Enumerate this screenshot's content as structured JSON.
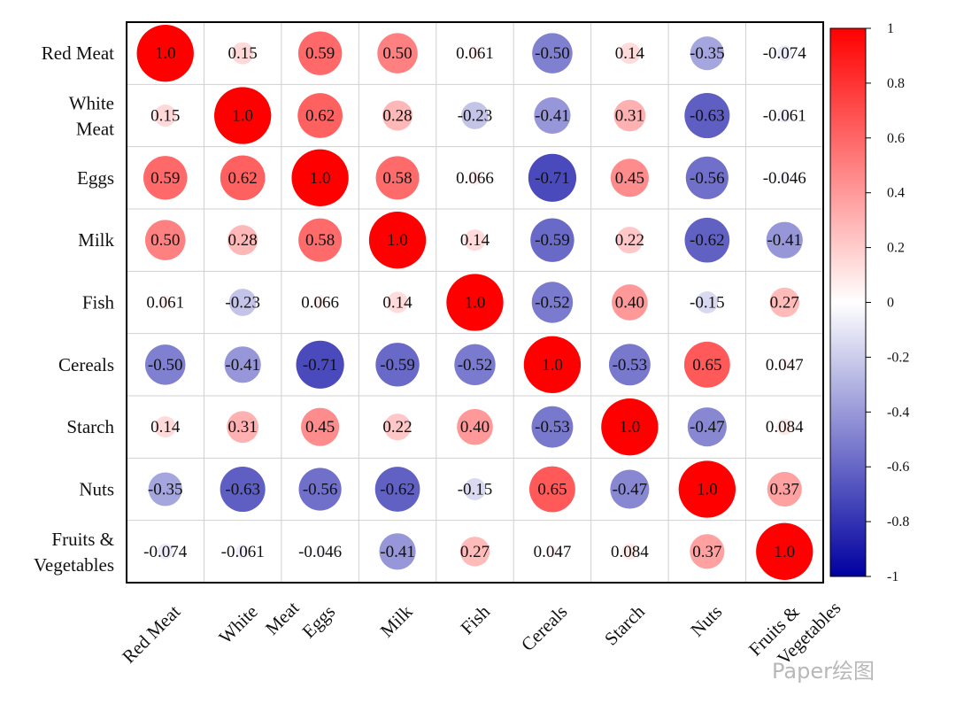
{
  "chart_data": {
    "type": "heatmap",
    "style": "circle-correlation-matrix",
    "title": "",
    "labels": [
      "Red Meat",
      "White Meat",
      "Eggs",
      "Milk",
      "Fish",
      "Cereals",
      "Starch",
      "Nuts",
      "Fruits & Vegetables"
    ],
    "label_lines": [
      [
        "Red Meat"
      ],
      [
        "White",
        "Meat"
      ],
      [
        "Eggs"
      ],
      [
        "Milk"
      ],
      [
        "Fish"
      ],
      [
        "Cereals"
      ],
      [
        "Starch"
      ],
      [
        "Nuts"
      ],
      [
        "Fruits &",
        "Vegetables"
      ]
    ],
    "matrix": [
      [
        1.0,
        0.15,
        0.59,
        0.5,
        0.061,
        -0.5,
        0.14,
        -0.35,
        -0.074
      ],
      [
        0.15,
        1.0,
        0.62,
        0.28,
        -0.23,
        -0.41,
        0.31,
        -0.63,
        -0.061
      ],
      [
        0.59,
        0.62,
        1.0,
        0.58,
        0.066,
        -0.71,
        0.45,
        -0.56,
        -0.046
      ],
      [
        0.5,
        0.28,
        0.58,
        1.0,
        0.14,
        -0.59,
        0.22,
        -0.62,
        -0.41
      ],
      [
        0.061,
        -0.23,
        0.066,
        0.14,
        1.0,
        -0.52,
        0.4,
        -0.15,
        0.27
      ],
      [
        -0.5,
        -0.41,
        -0.71,
        -0.59,
        -0.52,
        1.0,
        -0.53,
        0.65,
        0.047
      ],
      [
        0.14,
        0.31,
        0.45,
        0.22,
        0.4,
        -0.53,
        1.0,
        -0.47,
        0.084
      ],
      [
        -0.35,
        -0.63,
        -0.56,
        -0.62,
        -0.15,
        0.65,
        -0.47,
        1.0,
        0.37
      ],
      [
        -0.074,
        -0.061,
        -0.046,
        -0.41,
        0.27,
        0.047,
        0.084,
        0.37,
        1.0
      ]
    ],
    "cell_labels": [
      [
        "1.0",
        "0.15",
        "0.59",
        "0.50",
        "0.061",
        "-0.50",
        "0.14",
        "-0.35",
        "-0.074"
      ],
      [
        "0.15",
        "1.0",
        "0.62",
        "0.28",
        "-0.23",
        "-0.41",
        "0.31",
        "-0.63",
        "-0.061"
      ],
      [
        "0.59",
        "0.62",
        "1.0",
        "0.58",
        "0.066",
        "-0.71",
        "0.45",
        "-0.56",
        "-0.046"
      ],
      [
        "0.50",
        "0.28",
        "0.58",
        "1.0",
        "0.14",
        "-0.59",
        "0.22",
        "-0.62",
        "-0.41"
      ],
      [
        "0.061",
        "-0.23",
        "0.066",
        "0.14",
        "1.0",
        "-0.52",
        "0.40",
        "-0.15",
        "0.27"
      ],
      [
        "-0.50",
        "-0.41",
        "-0.71",
        "-0.59",
        "-0.52",
        "1.0",
        "-0.53",
        "0.65",
        "0.047"
      ],
      [
        "0.14",
        "0.31",
        "0.45",
        "0.22",
        "0.40",
        "-0.53",
        "1.0",
        "-0.47",
        "0.084"
      ],
      [
        "-0.35",
        "-0.63",
        "-0.56",
        "-0.62",
        "-0.15",
        "0.65",
        "-0.47",
        "1.0",
        "0.37"
      ],
      [
        "-0.074",
        "-0.061",
        "-0.046",
        "-0.41",
        "0.27",
        "0.047",
        "0.084",
        "0.37",
        "1.0"
      ]
    ],
    "colorbar": {
      "range": [
        -1,
        1
      ],
      "ticks": [
        1,
        0.8,
        0.6,
        0.4,
        0.2,
        0,
        -0.2,
        -0.4,
        -0.6,
        -0.8,
        -1
      ],
      "tick_labels": [
        "1",
        "0.8",
        "0.6",
        "0.4",
        "0.2",
        "0",
        "-0.2",
        "-0.4",
        "-0.6",
        "-0.8",
        "-1"
      ],
      "colors": {
        "positive": "#ff0000",
        "zero": "#ffffff",
        "negative": "#0000a0"
      }
    },
    "grid": true,
    "legend": "right"
  },
  "watermark": "Paper绘图"
}
